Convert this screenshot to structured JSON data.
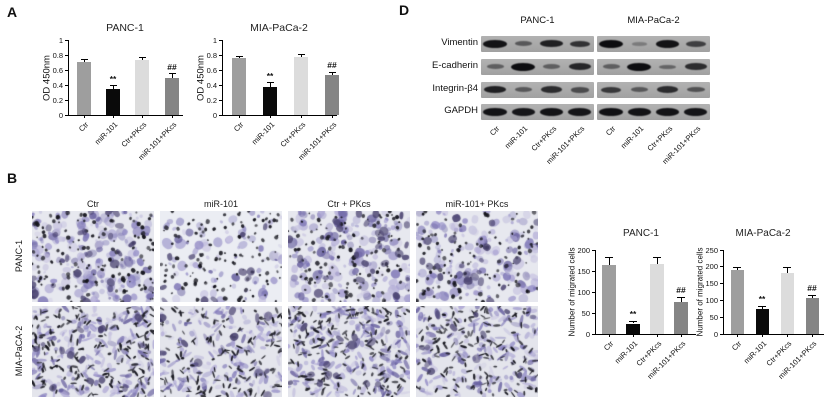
{
  "panels": {
    "a": {
      "label": "A"
    },
    "b": {
      "label": "B"
    },
    "d": {
      "label": "D"
    }
  },
  "categories": [
    "Ctr",
    "miR-101",
    "Ctr+PKcs",
    "miR-101+PKcs"
  ],
  "bar_colors": [
    "#9e9e9e",
    "#0a0a0a",
    "#dcdcdc",
    "#858585"
  ],
  "chart_data": [
    {
      "id": "a-panc1",
      "type": "bar",
      "title": "PANC-1",
      "ylabel": "OD 450nm",
      "ylim": [
        0,
        1
      ],
      "yticks": [
        0,
        0.2,
        0.4,
        0.6,
        0.8,
        1
      ],
      "categories": [
        "Ctr",
        "miR-101",
        "Ctr+PKcs",
        "miR-101+PKcs"
      ],
      "values": [
        0.71,
        0.35,
        0.73,
        0.5
      ],
      "errors": [
        0.03,
        0.04,
        0.04,
        0.05
      ],
      "annotations": [
        "",
        "**",
        "",
        "##"
      ],
      "grid": false,
      "legend": "none"
    },
    {
      "id": "a-mia",
      "type": "bar",
      "title": "MIA-PaCa-2",
      "ylabel": "OD 450nm",
      "ylim": [
        0,
        1
      ],
      "yticks": [
        0,
        0.2,
        0.4,
        0.6,
        0.8,
        1
      ],
      "categories": [
        "Ctr",
        "miR-101",
        "Ctr+PKcs",
        "miR-101+PKcs"
      ],
      "values": [
        0.76,
        0.37,
        0.78,
        0.54
      ],
      "errors": [
        0.02,
        0.06,
        0.03,
        0.03
      ],
      "annotations": [
        "",
        "**",
        "",
        "##"
      ],
      "grid": false,
      "legend": "none"
    },
    {
      "id": "b-panc1",
      "type": "bar",
      "title": "PANC-1",
      "ylabel": "Number of migrated cells",
      "ylim": [
        0,
        200
      ],
      "yticks": [
        0,
        50,
        100,
        150,
        200
      ],
      "categories": [
        "Ctr",
        "miR-101",
        "Ctr+PKcs",
        "miR-101+PKcs"
      ],
      "values": [
        165,
        25,
        167,
        77
      ],
      "errors": [
        18,
        5,
        16,
        11
      ],
      "annotations": [
        "",
        "**",
        "",
        "##"
      ],
      "grid": false,
      "legend": "none"
    },
    {
      "id": "b-mia",
      "type": "bar",
      "title": "MIA-PaCa-2",
      "ylabel": "Number of migrated cells",
      "ylim": [
        0,
        250
      ],
      "yticks": [
        0,
        50,
        100,
        150,
        200,
        250
      ],
      "categories": [
        "Ctr",
        "miR-101",
        "Ctr+PKcs",
        "miR-101+PKcs"
      ],
      "values": [
        190,
        75,
        182,
        108
      ],
      "errors": [
        8,
        8,
        16,
        7
      ],
      "annotations": [
        "",
        "**",
        "",
        "##"
      ],
      "grid": false,
      "legend": "none"
    }
  ],
  "panel_b": {
    "col_headers": [
      "Ctr",
      "miR-101",
      "Ctr + PKcs",
      "miR-101+ PKcs"
    ],
    "row_labels": [
      "PANC-1",
      "MIA-PaCA-2"
    ],
    "cell_densities": [
      [
        1.0,
        0.42,
        0.95,
        0.8
      ],
      [
        1.0,
        0.78,
        1.0,
        0.85
      ]
    ]
  },
  "panel_d": {
    "proteins": [
      "Vimentin",
      "E-cadherin",
      "Integrin-β4",
      "GAPDH"
    ],
    "lane_labels": [
      "Ctr",
      "miR-101",
      "Ctr+PKcs",
      "miR-101+PKcs"
    ],
    "groups": [
      {
        "title": "PANC-1",
        "band_intensities": [
          [
            0.95,
            0.4,
            0.85,
            0.7
          ],
          [
            0.35,
            1.0,
            0.35,
            0.8
          ],
          [
            0.85,
            0.4,
            0.75,
            0.5
          ],
          [
            0.95,
            0.92,
            0.95,
            0.93
          ]
        ]
      },
      {
        "title": "MIA-PaCa-2",
        "band_intensities": [
          [
            1.0,
            0.12,
            0.95,
            0.6
          ],
          [
            0.35,
            1.0,
            0.3,
            0.75
          ],
          [
            0.65,
            0.4,
            0.75,
            0.45
          ],
          [
            0.97,
            0.95,
            0.95,
            0.93
          ]
        ]
      }
    ]
  }
}
